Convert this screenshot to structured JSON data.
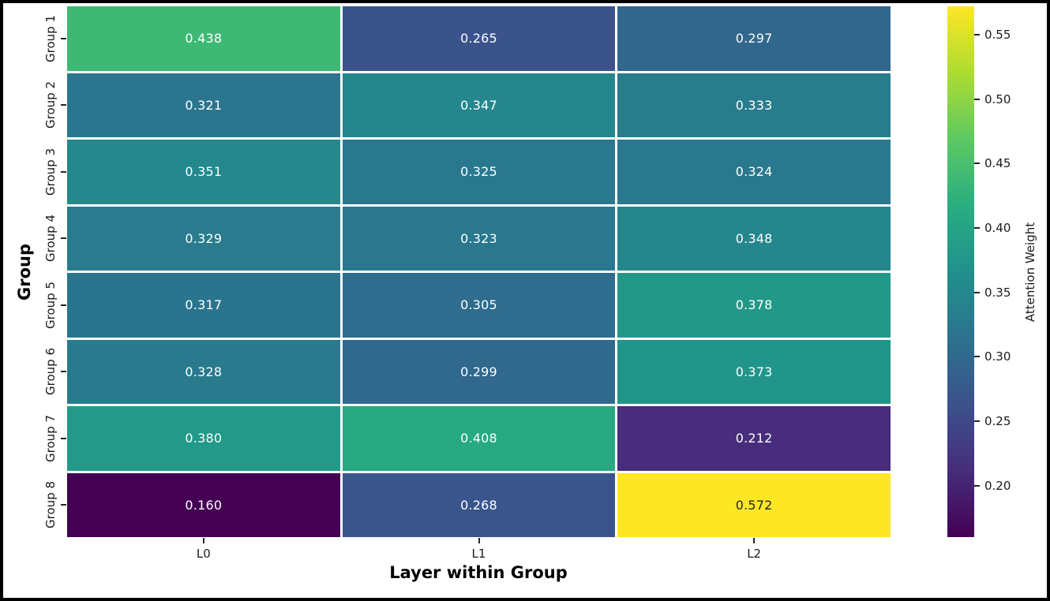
{
  "figure": {
    "background_color": "#ffffff",
    "frame_color": "#000000"
  },
  "chart_data": {
    "type": "heatmap",
    "title": "",
    "xlabel": "Layer within Group",
    "ylabel": "Group",
    "x_categories": [
      "L0",
      "L1",
      "L2"
    ],
    "y_categories": [
      "Group 1",
      "Group 2",
      "Group 3",
      "Group 4",
      "Group 5",
      "Group 6",
      "Group 7",
      "Group 8"
    ],
    "values": [
      [
        0.438,
        0.265,
        0.297
      ],
      [
        0.321,
        0.347,
        0.333
      ],
      [
        0.351,
        0.325,
        0.324
      ],
      [
        0.329,
        0.323,
        0.348
      ],
      [
        0.317,
        0.305,
        0.378
      ],
      [
        0.328,
        0.299,
        0.373
      ],
      [
        0.38,
        0.408,
        0.212
      ],
      [
        0.16,
        0.268,
        0.572
      ]
    ],
    "annotation_decimals": 3,
    "vmin": 0.16,
    "vmax": 0.572,
    "colormap": "viridis",
    "viridis_stops": [
      "#440154",
      "#472d7b",
      "#3b528b",
      "#2c728e",
      "#21918c",
      "#28ae80",
      "#5ec962",
      "#addc30",
      "#fde725"
    ],
    "cell_gap_color": "#ffffff",
    "annotation_color_dark_cell": "#ffffff",
    "annotation_color_light_cell": "#262626",
    "grid": false,
    "colorbar": {
      "label": "Attention Weight",
      "position": "right",
      "tick_labels": [
        "0.55",
        "0.50",
        "0.45",
        "0.40",
        "0.35",
        "0.30",
        "0.25",
        "0.20"
      ],
      "tick_values": [
        0.55,
        0.5,
        0.45,
        0.4,
        0.35,
        0.3,
        0.25,
        0.2
      ]
    }
  }
}
